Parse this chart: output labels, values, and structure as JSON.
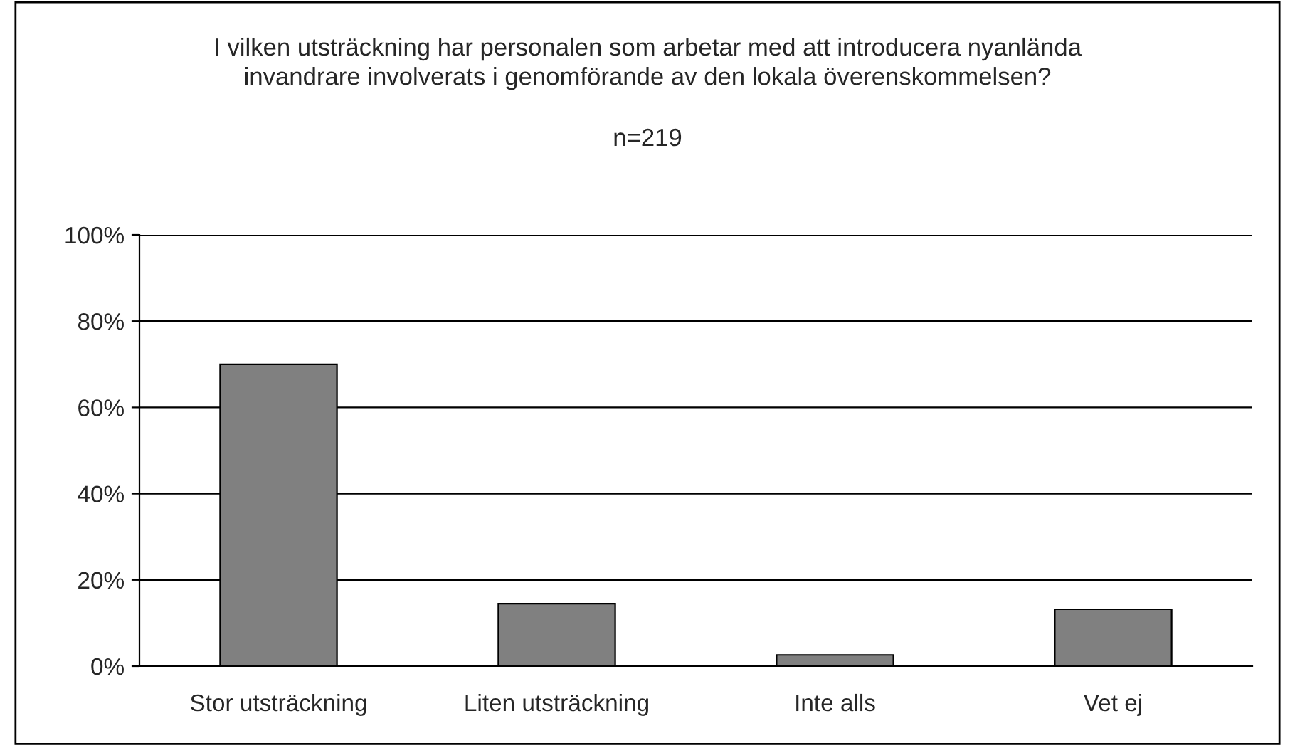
{
  "chart_data": {
    "type": "bar",
    "title": "I vilken utsträckning har personalen som arbetar med att introducera nyanlända\ninvandrare involverats i genomförande av den lokala överenskommelsen?",
    "subtitle": "n=219",
    "categories": [
      "Stor utsträckning",
      "Liten utsträckning",
      "Inte alls",
      "Vet ej"
    ],
    "values": [
      70,
      14.5,
      2.6,
      13.2
    ],
    "color": "#808080",
    "ylim": [
      0,
      100
    ],
    "yticks": [
      {
        "value": 0,
        "label": "0%"
      },
      {
        "value": 20,
        "label": "20%"
      },
      {
        "value": 40,
        "label": "40%"
      },
      {
        "value": 60,
        "label": "60%"
      },
      {
        "value": 80,
        "label": "80%"
      },
      {
        "value": 100,
        "label": "100%"
      }
    ],
    "grid": "y",
    "legend": false
  }
}
